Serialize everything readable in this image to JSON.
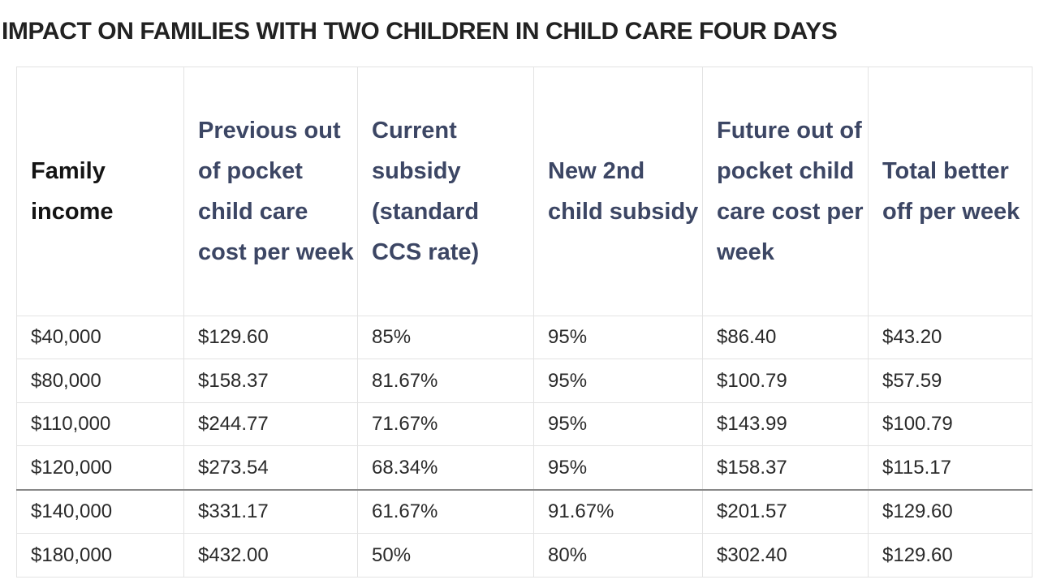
{
  "title": "IMPACT ON FAMILIES WITH TWO CHILDREN IN CHILD CARE FOUR DAYS",
  "table": {
    "columns": [
      "Family income",
      "Previous out of pocket child care cost per week",
      "Current subsidy (standard CCS rate)",
      "New 2nd child subsidy",
      "Future out of pocket child care cost per week",
      "Total better off per week"
    ],
    "rows": [
      [
        "$40,000",
        "$129.60",
        "85%",
        "95%",
        "$86.40",
        "$43.20"
      ],
      [
        "$80,000",
        "$158.37",
        "81.67%",
        "95%",
        "$100.79",
        "$57.59"
      ],
      [
        "$110,000",
        "$244.77",
        "71.67%",
        "95%",
        "$143.99",
        "$100.79"
      ],
      [
        "$120,000",
        "$273.54",
        "68.34%",
        "95%",
        "$158.37",
        "$115.17"
      ],
      [
        "$140,000",
        "$331.17",
        "61.67%",
        "91.67%",
        "$201.57",
        "$129.60"
      ],
      [
        "$180,000",
        "$432.00",
        "50%",
        "80%",
        "$302.40",
        "$129.60"
      ]
    ]
  }
}
